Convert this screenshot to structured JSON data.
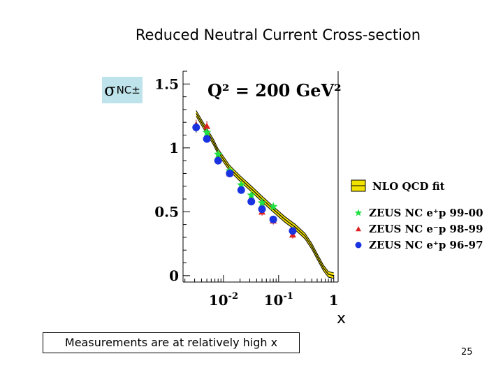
{
  "slide": {
    "title": "Reduced Neutral Current Cross-section",
    "sigma_symbol": "σ",
    "sigma_superscript": "NC±",
    "x_axis_label": "x",
    "note": "Measurements are at relatively high x",
    "page_number": "25"
  },
  "chart_data": {
    "type": "scatter",
    "annotation": "Q² = 200 GeV²",
    "x_scale": "log",
    "xlim": [
      0.00185,
      1.2
    ],
    "ylim": [
      -0.05,
      1.6
    ],
    "x_ticks": [
      {
        "value": 0.01,
        "base": "10",
        "exp": "-2"
      },
      {
        "value": 0.1,
        "base": "10",
        "exp": "-1"
      },
      {
        "value": 1,
        "base": "1",
        "exp": ""
      }
    ],
    "y_ticks": [
      {
        "value": 0,
        "label": "0"
      },
      {
        "value": 0.5,
        "label": "0.5"
      },
      {
        "value": 1,
        "label": "1"
      },
      {
        "value": 1.5,
        "label": "1.5"
      }
    ],
    "legend_position": "right",
    "fit": {
      "name": "NLO QCD fit",
      "color": "#f2e200",
      "points": [
        [
          0.0032,
          1.27
        ],
        [
          0.004,
          1.2
        ],
        [
          0.005,
          1.13
        ],
        [
          0.0065,
          1.05
        ],
        [
          0.008,
          0.97
        ],
        [
          0.013,
          0.84
        ],
        [
          0.02,
          0.76
        ],
        [
          0.032,
          0.68
        ],
        [
          0.05,
          0.6
        ],
        [
          0.08,
          0.52
        ],
        [
          0.13,
          0.44
        ],
        [
          0.2,
          0.38
        ],
        [
          0.3,
          0.31
        ],
        [
          0.4,
          0.23
        ],
        [
          0.5,
          0.15
        ],
        [
          0.65,
          0.06
        ],
        [
          0.8,
          0.01
        ],
        [
          1.0,
          0.0
        ]
      ]
    },
    "series": [
      {
        "name": "ZEUS NC e⁺p 99-00",
        "color": "#22e044",
        "marker": "star",
        "points": [
          {
            "x": 0.005,
            "y": 1.12,
            "err": 0.03
          },
          {
            "x": 0.008,
            "y": 0.95,
            "err": 0.03
          },
          {
            "x": 0.013,
            "y": 0.82,
            "err": 0.02
          },
          {
            "x": 0.021,
            "y": 0.71,
            "err": 0.02
          },
          {
            "x": 0.032,
            "y": 0.63,
            "err": 0.02
          },
          {
            "x": 0.05,
            "y": 0.57,
            "err": 0.02
          },
          {
            "x": 0.08,
            "y": 0.54,
            "err": 0.02
          }
        ]
      },
      {
        "name": "ZEUS NC e⁻p 98-99",
        "color": "#e02020",
        "marker": "triangle",
        "points": [
          {
            "x": 0.0032,
            "y": 1.18,
            "err": 0.04
          },
          {
            "x": 0.005,
            "y": 1.17,
            "err": 0.04
          },
          {
            "x": 0.008,
            "y": 0.93,
            "err": 0.04
          },
          {
            "x": 0.013,
            "y": 0.8,
            "err": 0.03
          },
          {
            "x": 0.021,
            "y": 0.68,
            "err": 0.03
          },
          {
            "x": 0.032,
            "y": 0.6,
            "err": 0.03
          },
          {
            "x": 0.05,
            "y": 0.5,
            "err": 0.03
          },
          {
            "x": 0.08,
            "y": 0.43,
            "err": 0.03
          },
          {
            "x": 0.18,
            "y": 0.32,
            "err": 0.03
          }
        ]
      },
      {
        "name": "ZEUS NC e⁺p 96-97",
        "color": "#1a33e0",
        "marker": "circle",
        "points": [
          {
            "x": 0.0032,
            "y": 1.16,
            "err": 0.04
          },
          {
            "x": 0.005,
            "y": 1.07,
            "err": 0.03
          },
          {
            "x": 0.008,
            "y": 0.9,
            "err": 0.03
          },
          {
            "x": 0.013,
            "y": 0.8,
            "err": 0.02
          },
          {
            "x": 0.021,
            "y": 0.67,
            "err": 0.02
          },
          {
            "x": 0.032,
            "y": 0.58,
            "err": 0.02
          },
          {
            "x": 0.05,
            "y": 0.52,
            "err": 0.02
          },
          {
            "x": 0.08,
            "y": 0.44,
            "err": 0.02
          },
          {
            "x": 0.18,
            "y": 0.35,
            "err": 0.02
          }
        ]
      }
    ]
  }
}
